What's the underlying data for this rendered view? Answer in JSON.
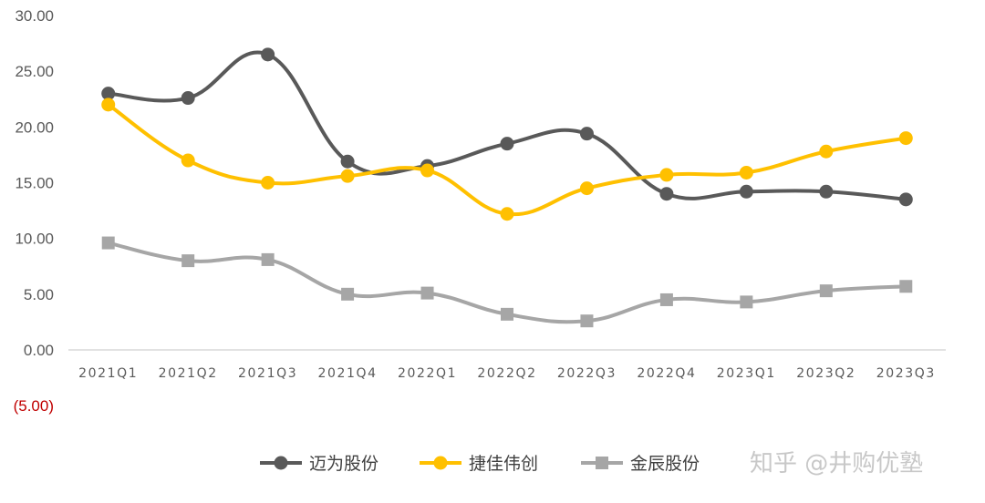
{
  "chart_data": {
    "type": "line",
    "categories": [
      "2021Q1",
      "2021Q2",
      "2021Q3",
      "2021Q4",
      "2022Q1",
      "2022Q2",
      "2022Q3",
      "2022Q4",
      "2023Q1",
      "2023Q2",
      "2023Q3"
    ],
    "y_tick_labels": [
      "(5.00)",
      "0.00",
      "5.00",
      "10.00",
      "15.00",
      "20.00",
      "25.00",
      "30.00"
    ],
    "y_ticks": [
      -5,
      0,
      5,
      10,
      15,
      20,
      25,
      30
    ],
    "ylim": [
      -5,
      30
    ],
    "grid": false,
    "legend_position": "bottom",
    "series": [
      {
        "name": "迈为股份",
        "color": "#595959",
        "marker": "circle",
        "values": [
          23.0,
          22.6,
          26.5,
          16.9,
          16.5,
          18.5,
          19.4,
          14.0,
          14.2,
          14.2,
          13.5
        ]
      },
      {
        "name": "捷佳伟创",
        "color": "#ffc000",
        "marker": "circle",
        "values": [
          22.0,
          17.0,
          15.0,
          15.6,
          16.1,
          12.2,
          14.5,
          15.7,
          15.9,
          17.8,
          19.0
        ]
      },
      {
        "name": "金辰股份",
        "color": "#a6a6a6",
        "marker": "square",
        "values": [
          9.6,
          8.0,
          8.1,
          5.0,
          5.1,
          3.2,
          2.6,
          4.5,
          4.3,
          5.3,
          5.7
        ]
      }
    ]
  },
  "watermark": "知乎 @井购优塾"
}
